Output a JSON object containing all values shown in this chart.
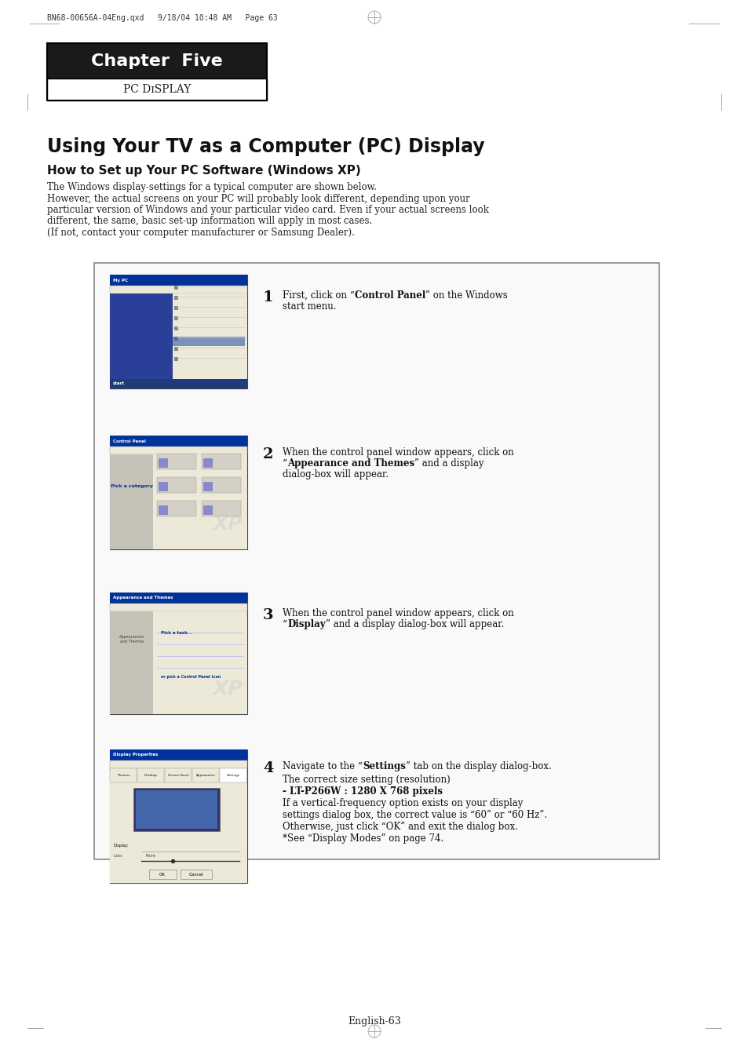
{
  "page_header": "BN68-00656A-04Eng.qxd   9/18/04 10:48 AM   Page 63",
  "chapter_title": "Chapter  Five",
  "chapter_subtitle": "PC Dɪsplay",
  "chapter_subtitle_display": "PC DISPLAY",
  "section_title": "Using Your TV as a Computer (PC) Display",
  "subsection_title": "How to Set up Your PC Software (Windows XP)",
  "intro_text": [
    "The Windows display-settings for a typical computer are shown below.",
    "However, the actual screens on your PC will probably look different, depending upon your",
    "particular version of Windows and your particular video card. Even if your actual screens look",
    "different, the same, basic set-up information will apply in most cases.",
    "(If not, contact your computer manufacturer or Samsung Dealer)."
  ],
  "steps": [
    {
      "number": "1",
      "text_parts": [
        {
          "text": "First, click on “",
          "bold": false
        },
        {
          "text": "Control Panel",
          "bold": true
        },
        {
          "text": "” on the Windows\nstart menu.",
          "bold": false
        }
      ]
    },
    {
      "number": "2",
      "text_parts": [
        {
          "text": "When the control panel window appears, click on\n“",
          "bold": false
        },
        {
          "text": "Appearance and Themes",
          "bold": true
        },
        {
          "text": "” and a display\ndialog-box will appear.",
          "bold": false
        }
      ]
    },
    {
      "number": "3",
      "text_parts": [
        {
          "text": "When the control panel window appears, click on\n“",
          "bold": false
        },
        {
          "text": "Display",
          "bold": true
        },
        {
          "text": "” and a display dialog-box will appear.",
          "bold": false
        }
      ]
    },
    {
      "number": "4",
      "text_parts_line1": [
        {
          "text": "Navigate to the “",
          "bold": false
        },
        {
          "text": "Settings",
          "bold": true
        },
        {
          "text": "” tab on the display dialog-box.",
          "bold": false
        }
      ],
      "text_line2": "The correct size setting (resolution)",
      "text_line3_parts": [
        {
          "text": "- LT-P266W : 1280 X 768 pixels",
          "bold": true
        }
      ],
      "text_line4": "If a vertical-frequency option exists on your display",
      "text_line5": "settings dialog box, the correct value is “60” or “60 Hz”.",
      "text_line6": "Otherwise, just click “OK” and exit the dialog box.",
      "text_line7": "*See “Display Modes” on page 74."
    }
  ],
  "footer_text": "English-63",
  "bg_color": "#ffffff",
  "chapter_bg": "#1a1a1a",
  "chapter_text_color": "#ffffff",
  "border_color": "#000000",
  "content_box_border": "#555555"
}
